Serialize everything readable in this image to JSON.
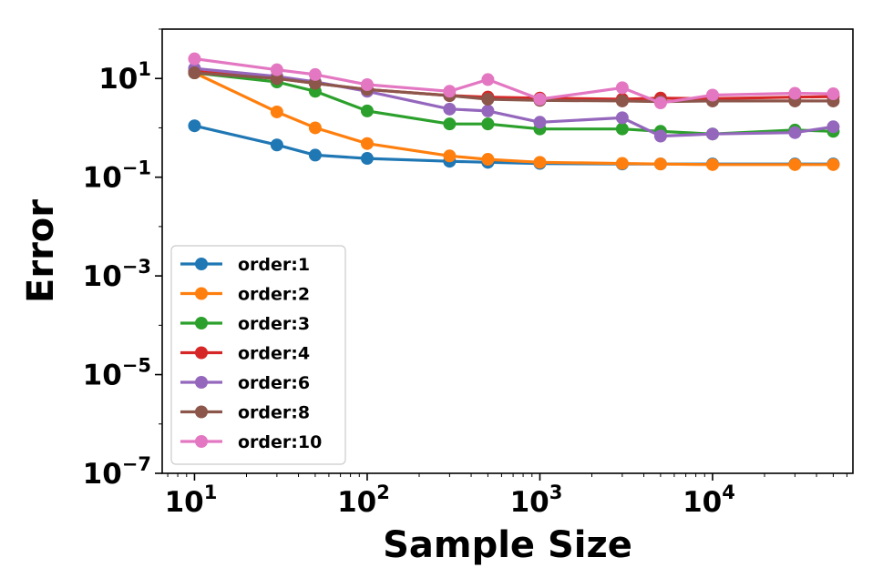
{
  "chart_data": {
    "type": "line",
    "title": "",
    "xlabel": "Sample Size",
    "ylabel": "Error",
    "xscale": "log",
    "yscale": "log",
    "xlim": [
      6.5,
      65000
    ],
    "ylim": [
      1e-07,
      100
    ],
    "grid": false,
    "legend_position": "center-left",
    "x": [
      10,
      30,
      50,
      100,
      300,
      500,
      1000,
      3000,
      5000,
      10000,
      30000,
      50000
    ],
    "x_ticks": [
      {
        "value": 10,
        "base": "10",
        "exp": "1"
      },
      {
        "value": 100,
        "base": "10",
        "exp": "2"
      },
      {
        "value": 1000,
        "base": "10",
        "exp": "3"
      },
      {
        "value": 10000,
        "base": "10",
        "exp": "4"
      }
    ],
    "y_ticks": [
      {
        "value": 10,
        "base": "10",
        "exp": "1"
      },
      {
        "value": 0.1,
        "base": "10",
        "exp": "−1"
      },
      {
        "value": 0.001,
        "base": "10",
        "exp": "−3"
      },
      {
        "value": 1e-05,
        "base": "10",
        "exp": "−5"
      },
      {
        "value": 1e-07,
        "base": "10",
        "exp": "−7"
      }
    ],
    "series": [
      {
        "name": "order:1",
        "color": "#1f77b4",
        "values": [
          1.1,
          0.45,
          0.28,
          0.24,
          0.21,
          0.2,
          0.19,
          0.185,
          0.185,
          0.185,
          0.185,
          0.185
        ]
      },
      {
        "name": "order:2",
        "color": "#ff7f0e",
        "values": [
          13,
          2.1,
          1.0,
          0.48,
          0.27,
          0.23,
          0.2,
          0.19,
          0.185,
          0.18,
          0.18,
          0.18
        ]
      },
      {
        "name": "order:3",
        "color": "#2ca02c",
        "values": [
          13,
          8.5,
          5.5,
          2.2,
          1.2,
          1.2,
          0.95,
          0.95,
          0.85,
          0.75,
          0.9,
          0.85
        ]
      },
      {
        "name": "order:4",
        "color": "#d62728",
        "values": [
          14,
          10,
          8,
          6,
          4.5,
          4.2,
          4.0,
          3.8,
          4.0,
          3.9,
          4.2,
          4.3
        ]
      },
      {
        "name": "order:6",
        "color": "#9467bd",
        "values": [
          16,
          11,
          8.5,
          5.5,
          2.4,
          2.2,
          1.3,
          1.6,
          0.68,
          0.75,
          0.8,
          1.05
        ]
      },
      {
        "name": "order:8",
        "color": "#8c564b",
        "values": [
          13,
          10,
          8,
          6,
          4.5,
          3.8,
          3.6,
          3.5,
          3.4,
          3.5,
          3.5,
          3.5
        ]
      },
      {
        "name": "order:10",
        "color": "#e377c2",
        "values": [
          25,
          15,
          12,
          7.5,
          5.5,
          9.5,
          3.8,
          6.5,
          3.2,
          4.6,
          5.0,
          4.9
        ]
      }
    ]
  }
}
